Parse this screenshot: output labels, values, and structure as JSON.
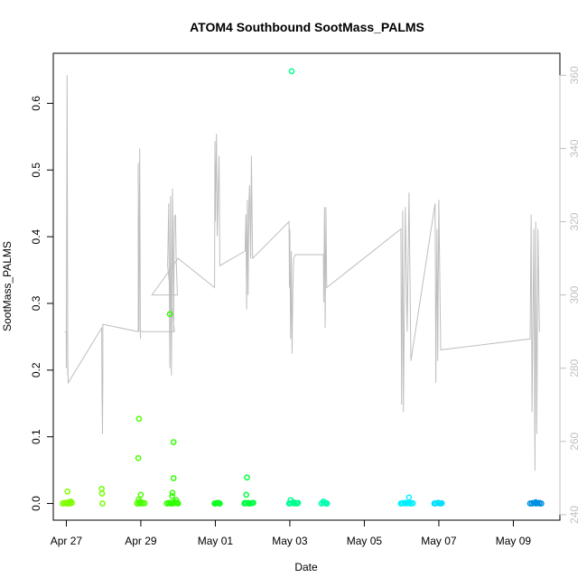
{
  "chart_data": {
    "type": "scatter",
    "title": "ATOM4 Southbound SootMass_PALMS",
    "xlabel": "Date",
    "ylabel": "SootMass_PALMS",
    "x_range_days": [
      26.65,
      40.25
    ],
    "ylim": [
      -0.025,
      0.675
    ],
    "y2lim": [
      238.5,
      366
    ],
    "x_ticks": [
      {
        "label": "Apr 27",
        "day": 27
      },
      {
        "label": "Apr 29",
        "day": 29
      },
      {
        "label": "May 01",
        "day": 31
      },
      {
        "label": "May 03",
        "day": 33
      },
      {
        "label": "May 05",
        "day": 35
      },
      {
        "label": "May 07",
        "day": 37
      },
      {
        "label": "May 09",
        "day": 39
      }
    ],
    "y_ticks": [
      "0.0",
      "0.1",
      "0.2",
      "0.3",
      "0.4",
      "0.5",
      "0.6"
    ],
    "y2_ticks": [
      "240",
      "260",
      "280",
      "300",
      "320",
      "340",
      "360"
    ],
    "points_color_note": "colors vary along a green-to-blue gradient by time",
    "points": [
      {
        "x": 26.95,
        "y": 0.001,
        "color": "#80ff00"
      },
      {
        "x": 27.0,
        "y": 0.0,
        "color": "#80ff00"
      },
      {
        "x": 27.03,
        "y": 0.018,
        "color": "#80ff00"
      },
      {
        "x": 27.06,
        "y": 0.002,
        "color": "#80ff00"
      },
      {
        "x": 27.1,
        "y": 0.0,
        "color": "#80ff00"
      },
      {
        "x": 27.12,
        "y": 0.003,
        "color": "#80ff00"
      },
      {
        "x": 27.95,
        "y": 0.022,
        "color": "#74ff00"
      },
      {
        "x": 27.96,
        "y": 0.015,
        "color": "#74ff00"
      },
      {
        "x": 27.97,
        "y": 0.0,
        "color": "#74ff00"
      },
      {
        "x": 28.95,
        "y": 0.127,
        "color": "#4cff00"
      },
      {
        "x": 28.93,
        "y": 0.068,
        "color": "#4cff00"
      },
      {
        "x": 29.0,
        "y": 0.013,
        "color": "#4cff00"
      },
      {
        "x": 28.98,
        "y": 0.003,
        "color": "#4cff00"
      },
      {
        "x": 28.94,
        "y": 0.006,
        "color": "#4cff00"
      },
      {
        "x": 28.96,
        "y": 0.0,
        "color": "#4cff00"
      },
      {
        "x": 29.05,
        "y": 0.001,
        "color": "#4cff00"
      },
      {
        "x": 29.78,
        "y": 0.284,
        "color": "#30ff00"
      },
      {
        "x": 29.88,
        "y": 0.092,
        "color": "#30ff00"
      },
      {
        "x": 29.88,
        "y": 0.038,
        "color": "#30ff00"
      },
      {
        "x": 29.85,
        "y": 0.016,
        "color": "#30ff00"
      },
      {
        "x": 29.84,
        "y": 0.011,
        "color": "#30ff00"
      },
      {
        "x": 29.75,
        "y": 0.001,
        "color": "#30ff00"
      },
      {
        "x": 29.8,
        "y": 0.0,
        "color": "#30ff00"
      },
      {
        "x": 29.9,
        "y": 0.002,
        "color": "#30ff00"
      },
      {
        "x": 29.95,
        "y": 0.005,
        "color": "#30ff00"
      },
      {
        "x": 29.98,
        "y": 0.001,
        "color": "#30ff00"
      },
      {
        "x": 31.0,
        "y": 0.0,
        "color": "#10ff20"
      },
      {
        "x": 31.06,
        "y": 0.001,
        "color": "#10ff20"
      },
      {
        "x": 31.1,
        "y": 0.0,
        "color": "#10ff20"
      },
      {
        "x": 31.85,
        "y": 0.039,
        "color": "#00ff40"
      },
      {
        "x": 31.83,
        "y": 0.013,
        "color": "#00ff40"
      },
      {
        "x": 31.8,
        "y": 0.001,
        "color": "#00ff40"
      },
      {
        "x": 31.9,
        "y": 0.0,
        "color": "#00ff40"
      },
      {
        "x": 32.0,
        "y": 0.001,
        "color": "#00ff40"
      },
      {
        "x": 33.05,
        "y": 0.648,
        "color": "#00ff90"
      },
      {
        "x": 33.02,
        "y": 0.005,
        "color": "#00ff90"
      },
      {
        "x": 33.0,
        "y": 0.0,
        "color": "#00ff90"
      },
      {
        "x": 33.1,
        "y": 0.002,
        "color": "#00ff90"
      },
      {
        "x": 33.2,
        "y": 0.0,
        "color": "#00ff90"
      },
      {
        "x": 33.9,
        "y": 0.003,
        "color": "#00ffb0"
      },
      {
        "x": 33.95,
        "y": 0.001,
        "color": "#00ffb0"
      },
      {
        "x": 33.98,
        "y": 0.0,
        "color": "#00ffb0"
      },
      {
        "x": 36.0,
        "y": 0.0,
        "color": "#00f0ff"
      },
      {
        "x": 36.1,
        "y": 0.001,
        "color": "#00f0ff"
      },
      {
        "x": 36.2,
        "y": 0.009,
        "color": "#00f0ff"
      },
      {
        "x": 36.25,
        "y": 0.0,
        "color": "#00f0ff"
      },
      {
        "x": 36.9,
        "y": 0.0,
        "color": "#00e0ff"
      },
      {
        "x": 37.0,
        "y": 0.001,
        "color": "#00e0ff"
      },
      {
        "x": 37.05,
        "y": 0.0,
        "color": "#00e0ff"
      },
      {
        "x": 39.5,
        "y": 0.0,
        "color": "#0090e0"
      },
      {
        "x": 39.6,
        "y": 0.002,
        "color": "#0090e0"
      },
      {
        "x": 39.7,
        "y": 0.0,
        "color": "#0090e0"
      }
    ],
    "clusters": [
      {
        "start": 26.9,
        "end": 27.15,
        "color": "#80ff00"
      },
      {
        "start": 28.9,
        "end": 29.1,
        "color": "#4cff00"
      },
      {
        "start": 29.7,
        "end": 30.0,
        "color": "#30ff00"
      },
      {
        "start": 30.98,
        "end": 31.12,
        "color": "#10ff20"
      },
      {
        "start": 31.78,
        "end": 32.02,
        "color": "#00ff40"
      },
      {
        "start": 32.98,
        "end": 33.22,
        "color": "#00ff90"
      },
      {
        "start": 33.85,
        "end": 34.0,
        "color": "#00ffb0"
      },
      {
        "start": 35.98,
        "end": 36.3,
        "color": "#00f0ff"
      },
      {
        "start": 36.88,
        "end": 37.08,
        "color": "#00e0ff"
      },
      {
        "start": 39.45,
        "end": 39.75,
        "color": "#0090e0"
      }
    ],
    "line_color": "#bebebe",
    "line_series_y2": [
      [
        26.95,
        290
      ],
      [
        27.0,
        290
      ],
      [
        27.0,
        280
      ],
      [
        27.02,
        360
      ],
      [
        27.04,
        278
      ],
      [
        27.03,
        290
      ],
      [
        27.05,
        276
      ],
      [
        27.95,
        291
      ],
      [
        27.96,
        272
      ],
      [
        27.97,
        262
      ],
      [
        27.98,
        278
      ],
      [
        27.98,
        292
      ],
      [
        28.93,
        290
      ],
      [
        28.93,
        336
      ],
      [
        28.95,
        290
      ],
      [
        28.97,
        340
      ],
      [
        28.99,
        288
      ],
      [
        28.99,
        290
      ],
      [
        29.9,
        290
      ],
      [
        29.72,
        308
      ],
      [
        29.75,
        325
      ],
      [
        29.78,
        280
      ],
      [
        29.8,
        327
      ],
      [
        29.82,
        278
      ],
      [
        29.85,
        329
      ],
      [
        29.86,
        318
      ],
      [
        29.88,
        290
      ],
      [
        29.9,
        321
      ],
      [
        29.93,
        322
      ],
      [
        29.95,
        310
      ],
      [
        29.98,
        300
      ],
      [
        29.3,
        300
      ],
      [
        30.0,
        310
      ],
      [
        30.98,
        302
      ],
      [
        30.99,
        342
      ],
      [
        31.0,
        320
      ],
      [
        31.03,
        344
      ],
      [
        31.05,
        316
      ],
      [
        31.1,
        338
      ],
      [
        31.12,
        308
      ],
      [
        31.8,
        312
      ],
      [
        31.82,
        322
      ],
      [
        31.84,
        296
      ],
      [
        31.86,
        326
      ],
      [
        31.88,
        300
      ],
      [
        31.9,
        324
      ],
      [
        31.92,
        330
      ],
      [
        31.95,
        310
      ],
      [
        31.97,
        338
      ],
      [
        32.0,
        310
      ],
      [
        32.98,
        320
      ],
      [
        32.99,
        302
      ],
      [
        33.0,
        318
      ],
      [
        33.02,
        288
      ],
      [
        33.04,
        312
      ],
      [
        33.06,
        284
      ],
      [
        33.08,
        300
      ],
      [
        33.1,
        310
      ],
      [
        33.15,
        311
      ],
      [
        33.9,
        311
      ],
      [
        33.91,
        298
      ],
      [
        33.93,
        324
      ],
      [
        33.95,
        291
      ],
      [
        33.97,
        324
      ],
      [
        33.99,
        302
      ],
      [
        35.98,
        318
      ],
      [
        36.0,
        270
      ],
      [
        36.03,
        323
      ],
      [
        36.05,
        268
      ],
      [
        36.1,
        324
      ],
      [
        36.15,
        290
      ],
      [
        36.2,
        328
      ],
      [
        36.25,
        282
      ],
      [
        36.9,
        325
      ],
      [
        36.92,
        276
      ],
      [
        36.95,
        318
      ],
      [
        36.97,
        282
      ],
      [
        37.0,
        326
      ],
      [
        37.05,
        285
      ],
      [
        39.45,
        288
      ],
      [
        39.48,
        322
      ],
      [
        39.5,
        268
      ],
      [
        39.55,
        318
      ],
      [
        39.58,
        252
      ],
      [
        39.6,
        320
      ],
      [
        39.63,
        262
      ],
      [
        39.66,
        318
      ],
      [
        39.7,
        290
      ]
    ]
  }
}
